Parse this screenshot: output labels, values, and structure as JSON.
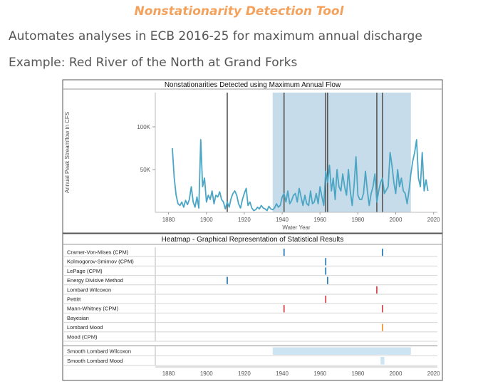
{
  "header": {
    "tool_title": "Nonstationarity Detection Tool",
    "subtitle_1": "Automates analyses in ECB 2016-25 for maximum annual discharge",
    "subtitle_2": "Example: Red River of the North at Grand Forks"
  },
  "colors": {
    "line": "#4aa6c4",
    "band": "#c7dcea",
    "changepoint": "#555555",
    "heat_blue": "#2f7fb8",
    "heat_red": "#d6474d",
    "heat_orange": "#f0953a",
    "smooth": "#cde4f2"
  },
  "chart_data": [
    {
      "type": "line",
      "title": "Nonstationarities Detected using Maximum Annual Flow",
      "xlabel": "Water Year",
      "ylabel": "Annual Peak Streamflow in CFS",
      "xlim": [
        1873,
        2022
      ],
      "ylim": [
        0,
        140000
      ],
      "x_ticks": [
        1880,
        1900,
        1920,
        1940,
        1960,
        1980,
        2000,
        2020
      ],
      "y_ticks": [
        {
          "value": 50000,
          "label": "50K"
        },
        {
          "value": 100000,
          "label": "100K"
        }
      ],
      "shaded_band": [
        1935,
        2008
      ],
      "changepoints": [
        1911,
        1941,
        1963,
        1964,
        1990,
        1993
      ],
      "series": [
        {
          "x": [
            1882,
            1883,
            1884,
            1885,
            1886,
            1887,
            1888,
            1889,
            1890,
            1891,
            1892,
            1893,
            1894,
            1895,
            1896,
            1897,
            1898,
            1899,
            1900,
            1901,
            1902,
            1903,
            1904,
            1905,
            1906,
            1907,
            1908,
            1909,
            1910,
            1911,
            1912,
            1913,
            1914,
            1915,
            1916,
            1917,
            1918,
            1919,
            1920,
            1921,
            1922,
            1923,
            1924,
            1925,
            1926,
            1927,
            1928,
            1929,
            1930,
            1931,
            1932,
            1933,
            1934,
            1935,
            1936,
            1937,
            1938,
            1939,
            1940,
            1941,
            1942,
            1943,
            1944,
            1945,
            1946,
            1947,
            1948,
            1949,
            1950,
            1951,
            1952,
            1953,
            1954,
            1955,
            1956,
            1957,
            1958,
            1959,
            1960,
            1961,
            1962,
            1963,
            1964,
            1965,
            1966,
            1967,
            1968,
            1969,
            1970,
            1971,
            1972,
            1973,
            1974,
            1975,
            1976,
            1977,
            1978,
            1979,
            1980,
            1981,
            1982,
            1983,
            1984,
            1985,
            1986,
            1987,
            1988,
            1989,
            1990,
            1991,
            1992,
            1993,
            1994,
            1995,
            1996,
            1997,
            1998,
            1999,
            2000,
            2001,
            2002,
            2003,
            2004,
            2005,
            2006,
            2007,
            2008,
            2009,
            2010,
            2011,
            2012,
            2013,
            2014,
            2015,
            2016,
            2017
          ],
          "values": [
            75000,
            40000,
            20000,
            10000,
            8000,
            12000,
            6000,
            14000,
            9000,
            15000,
            30000,
            12000,
            6000,
            18000,
            5000,
            85000,
            30000,
            40000,
            12000,
            20000,
            15000,
            25000,
            10000,
            20000,
            18000,
            24000,
            15000,
            12000,
            4000,
            12000,
            6000,
            16000,
            22000,
            25000,
            20000,
            10000,
            5000,
            15000,
            22000,
            28000,
            8000,
            12000,
            5000,
            2000,
            3000,
            6000,
            4000,
            8000,
            5000,
            4000,
            2000,
            7000,
            4000,
            3000,
            5000,
            10000,
            6000,
            8000,
            18000,
            22000,
            12000,
            25000,
            10000,
            14000,
            20000,
            22000,
            12000,
            28000,
            18000,
            8000,
            20000,
            10000,
            8000,
            25000,
            10000,
            12000,
            22000,
            10000,
            30000,
            18000,
            8000,
            48000,
            35000,
            55000,
            25000,
            40000,
            15000,
            50000,
            30000,
            25000,
            45000,
            30000,
            20000,
            50000,
            25000,
            8000,
            32000,
            65000,
            20000,
            15000,
            15000,
            22000,
            48000,
            25000,
            8000,
            22000,
            30000,
            45000,
            12000,
            25000,
            35000,
            40000,
            22000,
            26000,
            30000,
            70000,
            55000,
            35000,
            22000,
            50000,
            30000,
            40000,
            25000,
            22000,
            10000,
            25000,
            45000,
            60000,
            70000,
            85000,
            40000,
            30000,
            70000,
            25000,
            38000,
            25000
          ]
        }
      ]
    },
    {
      "type": "heatmap",
      "title": "Heatmap - Graphical Representation of Statistical Results",
      "xlim": [
        1873,
        2022
      ],
      "x_ticks": [
        1880,
        1900,
        1920,
        1940,
        1960,
        1980,
        2000,
        2020
      ],
      "rows": [
        {
          "label": "Cramer-Von-Mises (CPM)",
          "marks": [
            {
              "x": 1941,
              "color": "blue"
            },
            {
              "x": 1993,
              "color": "blue"
            }
          ]
        },
        {
          "label": "Kolmogorov-Smirnov (CPM)",
          "marks": [
            {
              "x": 1963,
              "color": "blue"
            }
          ]
        },
        {
          "label": "LePage (CPM)",
          "marks": [
            {
              "x": 1963,
              "color": "blue"
            }
          ]
        },
        {
          "label": "Energy Divisive Method",
          "marks": [
            {
              "x": 1911,
              "color": "blue"
            },
            {
              "x": 1964,
              "color": "blue"
            }
          ]
        },
        {
          "label": "Lombard Wilcoxon",
          "marks": [
            {
              "x": 1990,
              "color": "red"
            }
          ]
        },
        {
          "label": "Pettitt",
          "marks": [
            {
              "x": 1963,
              "color": "red"
            }
          ]
        },
        {
          "label": "Mann-Whitney (CPM)",
          "marks": [
            {
              "x": 1941,
              "color": "red"
            },
            {
              "x": 1993,
              "color": "red"
            }
          ]
        },
        {
          "label": "Bayesian",
          "marks": []
        },
        {
          "label": "Lombard Mood",
          "marks": [
            {
              "x": 1993,
              "color": "orange"
            }
          ]
        },
        {
          "label": "Mood (CPM)",
          "marks": []
        }
      ],
      "smooth_rows": [
        {
          "label": "Smooth Lombard Wilcoxon",
          "range": [
            1935,
            2008
          ]
        },
        {
          "label": "Smooth Lombard Mood",
          "range": [
            1992,
            1994
          ]
        }
      ]
    }
  ]
}
